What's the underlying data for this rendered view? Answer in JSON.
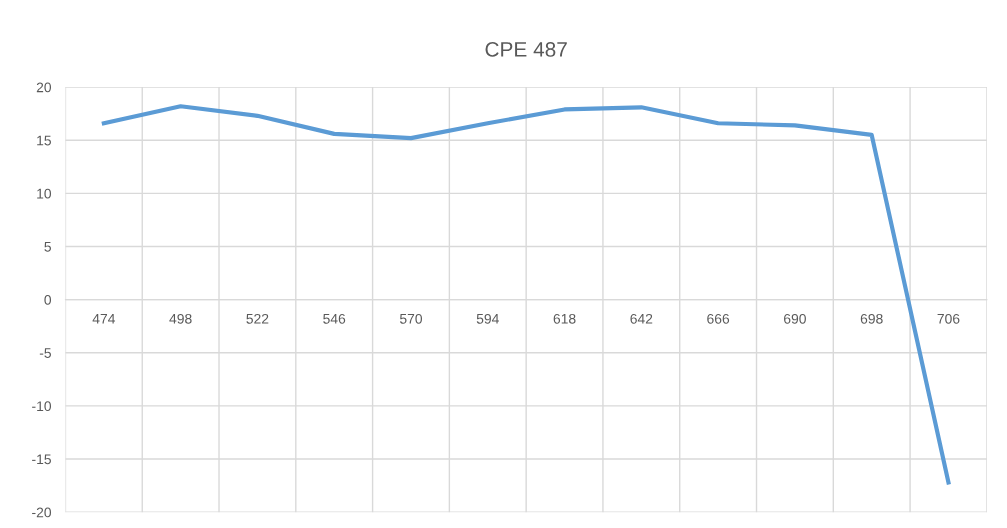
{
  "chart_data": {
    "type": "line",
    "title": "CPE 487",
    "categories": [
      "474",
      "498",
      "522",
      "546",
      "570",
      "594",
      "618",
      "642",
      "666",
      "690",
      "698",
      "706"
    ],
    "series": [
      {
        "color": "#5b9bd5",
        "values": [
          16.6,
          18.2,
          17.3,
          15.6,
          15.2,
          16.6,
          17.9,
          18.1,
          16.6,
          16.4,
          15.5,
          -17.2
        ]
      }
    ],
    "ylim": [
      -20,
      20
    ],
    "yticks": [
      -20,
      -15,
      -10,
      -5,
      0,
      5,
      10,
      15,
      20
    ],
    "grid": true,
    "marker": "none",
    "line_style": "solid",
    "legend": false
  }
}
